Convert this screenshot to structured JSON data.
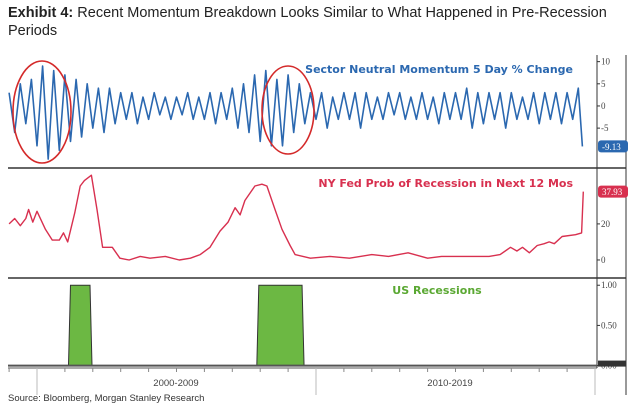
{
  "title": {
    "prefix": "Exhibit 4:",
    "text": "Recent Momentum Breakdown Looks Similar to What Happened in Pre-Recession Periods"
  },
  "source": "Source: Bloomberg, Morgan Stanley Research",
  "colors": {
    "momentum": "#2b68b0",
    "recession_prob": "#d8304f",
    "recessions_fill": "#6cb843",
    "recessions_stroke": "#333333",
    "highlight_circle": "#d42a2a"
  },
  "chart_data": [
    {
      "type": "line",
      "title": "Sector Neutral Momentum 5 Day % Change",
      "ylim": [
        -14,
        11.5
      ],
      "yticks": [
        "10",
        "5",
        "0",
        "-5"
      ],
      "ytick_values": [
        10,
        5,
        0,
        -5
      ],
      "last_value_label": "-9.13",
      "last_value": -9.13,
      "points": [
        [
          1999.0,
          3
        ],
        [
          1999.2,
          -6
        ],
        [
          1999.4,
          5
        ],
        [
          1999.6,
          -4
        ],
        [
          1999.8,
          6
        ],
        [
          2000.0,
          -9
        ],
        [
          2000.2,
          9
        ],
        [
          2000.4,
          -12
        ],
        [
          2000.6,
          8
        ],
        [
          2000.8,
          -10
        ],
        [
          2001.0,
          7
        ],
        [
          2001.2,
          -8
        ],
        [
          2001.4,
          6
        ],
        [
          2001.6,
          -7
        ],
        [
          2001.8,
          5
        ],
        [
          2002.0,
          -5
        ],
        [
          2002.2,
          4
        ],
        [
          2002.4,
          -6
        ],
        [
          2002.6,
          4
        ],
        [
          2002.8,
          -4
        ],
        [
          2003.0,
          3
        ],
        [
          2003.2,
          -3
        ],
        [
          2003.4,
          3
        ],
        [
          2003.6,
          -4
        ],
        [
          2003.8,
          2
        ],
        [
          2004.0,
          -3
        ],
        [
          2004.2,
          3
        ],
        [
          2004.4,
          -2
        ],
        [
          2004.6,
          2
        ],
        [
          2004.8,
          -3
        ],
        [
          2005.0,
          2
        ],
        [
          2005.2,
          -2
        ],
        [
          2005.4,
          3
        ],
        [
          2005.6,
          -3
        ],
        [
          2005.8,
          2
        ],
        [
          2006.0,
          -3
        ],
        [
          2006.2,
          3
        ],
        [
          2006.4,
          -4
        ],
        [
          2006.6,
          3
        ],
        [
          2006.8,
          -3
        ],
        [
          2007.0,
          4
        ],
        [
          2007.2,
          -5
        ],
        [
          2007.4,
          5
        ],
        [
          2007.6,
          -6
        ],
        [
          2007.8,
          7
        ],
        [
          2008.0,
          -8
        ],
        [
          2008.2,
          8
        ],
        [
          2008.4,
          -9
        ],
        [
          2008.6,
          6
        ],
        [
          2008.8,
          -9
        ],
        [
          2009.0,
          7
        ],
        [
          2009.2,
          -6
        ],
        [
          2009.4,
          5
        ],
        [
          2009.6,
          -4
        ],
        [
          2009.8,
          3
        ],
        [
          2010.0,
          -3
        ],
        [
          2010.2,
          3
        ],
        [
          2010.4,
          -5
        ],
        [
          2010.6,
          2
        ],
        [
          2010.8,
          -3
        ],
        [
          2011.0,
          3
        ],
        [
          2011.2,
          -3
        ],
        [
          2011.4,
          3
        ],
        [
          2011.6,
          -5
        ],
        [
          2011.8,
          3
        ],
        [
          2012.0,
          -3
        ],
        [
          2012.2,
          2
        ],
        [
          2012.4,
          -3
        ],
        [
          2012.6,
          3
        ],
        [
          2012.8,
          -2
        ],
        [
          2013.0,
          3
        ],
        [
          2013.2,
          -3
        ],
        [
          2013.4,
          2
        ],
        [
          2013.6,
          -3
        ],
        [
          2013.8,
          3
        ],
        [
          2014.0,
          -3
        ],
        [
          2014.2,
          2
        ],
        [
          2014.4,
          -4
        ],
        [
          2014.6,
          3
        ],
        [
          2014.8,
          -3
        ],
        [
          2015.0,
          3
        ],
        [
          2015.2,
          -3
        ],
        [
          2015.4,
          4
        ],
        [
          2015.6,
          -5
        ],
        [
          2015.8,
          3
        ],
        [
          2016.0,
          -4
        ],
        [
          2016.2,
          3
        ],
        [
          2016.4,
          -3
        ],
        [
          2016.6,
          3
        ],
        [
          2016.8,
          -5
        ],
        [
          2017.0,
          3
        ],
        [
          2017.2,
          -3
        ],
        [
          2017.4,
          2
        ],
        [
          2017.6,
          -3
        ],
        [
          2017.8,
          3
        ],
        [
          2018.0,
          -4
        ],
        [
          2018.2,
          3
        ],
        [
          2018.4,
          -3
        ],
        [
          2018.6,
          3
        ],
        [
          2018.8,
          -4
        ],
        [
          2019.0,
          3
        ],
        [
          2019.2,
          -3
        ],
        [
          2019.4,
          4
        ],
        [
          2019.55,
          -9.13
        ]
      ]
    },
    {
      "type": "line",
      "title": "NY Fed Prob of Recession in Next 12 Mos",
      "ylim": [
        -10,
        51
      ],
      "yticks": [
        "20",
        "0"
      ],
      "ytick_values": [
        20,
        0
      ],
      "last_value_label": "37.93",
      "last_value": 37.93,
      "points": [
        [
          1999.0,
          20
        ],
        [
          1999.2,
          23
        ],
        [
          1999.4,
          19
        ],
        [
          1999.6,
          23
        ],
        [
          1999.7,
          28
        ],
        [
          1999.85,
          21
        ],
        [
          2000.0,
          27
        ],
        [
          2000.3,
          17
        ],
        [
          2000.55,
          11
        ],
        [
          2000.8,
          11
        ],
        [
          2000.95,
          15
        ],
        [
          2001.1,
          10
        ],
        [
          2001.35,
          26
        ],
        [
          2001.55,
          41
        ],
        [
          2001.7,
          44
        ],
        [
          2001.95,
          47
        ],
        [
          2002.15,
          28
        ],
        [
          2002.35,
          7
        ],
        [
          2002.7,
          7
        ],
        [
          2002.97,
          1
        ],
        [
          2003.3,
          0
        ],
        [
          2003.7,
          2
        ],
        [
          2004.05,
          1
        ],
        [
          2004.6,
          2
        ],
        [
          2005.1,
          0
        ],
        [
          2005.5,
          1
        ],
        [
          2005.85,
          3
        ],
        [
          2006.2,
          7
        ],
        [
          2006.56,
          16
        ],
        [
          2006.85,
          21
        ],
        [
          2007.1,
          29
        ],
        [
          2007.28,
          25
        ],
        [
          2007.45,
          33
        ],
        [
          2007.81,
          41
        ],
        [
          2008.06,
          42
        ],
        [
          2008.24,
          41
        ],
        [
          2008.53,
          28
        ],
        [
          2008.78,
          17
        ],
        [
          2009.07,
          8
        ],
        [
          2009.25,
          3
        ],
        [
          2009.8,
          1
        ],
        [
          2010.5,
          2
        ],
        [
          2011.2,
          1
        ],
        [
          2012.0,
          3
        ],
        [
          2012.6,
          2
        ],
        [
          2013.3,
          4
        ],
        [
          2014.0,
          1
        ],
        [
          2014.5,
          2
        ],
        [
          2015.1,
          2
        ],
        [
          2016.2,
          2
        ],
        [
          2016.6,
          3
        ],
        [
          2016.97,
          7
        ],
        [
          2017.2,
          5
        ],
        [
          2017.4,
          7
        ],
        [
          2017.65,
          4
        ],
        [
          2017.93,
          8
        ],
        [
          2018.18,
          9
        ],
        [
          2018.36,
          10
        ],
        [
          2018.54,
          9
        ],
        [
          2018.82,
          13
        ],
        [
          2019.3,
          14
        ],
        [
          2019.52,
          15
        ],
        [
          2019.58,
          37.93
        ]
      ]
    },
    {
      "type": "area",
      "title": "US Recessions",
      "ylim": [
        -0.03,
        1.09
      ],
      "yticks": [
        "1.00",
        "0.50",
        "0.00"
      ],
      "ytick_values": [
        1,
        0.5,
        0
      ],
      "periods": [
        [
          2001.2,
          2001.9
        ],
        [
          2007.95,
          2009.5
        ]
      ]
    }
  ],
  "x_axis": {
    "labels": [
      "2000-2009",
      "2010-2019"
    ],
    "range": [
      1999.0,
      2019.6
    ]
  }
}
